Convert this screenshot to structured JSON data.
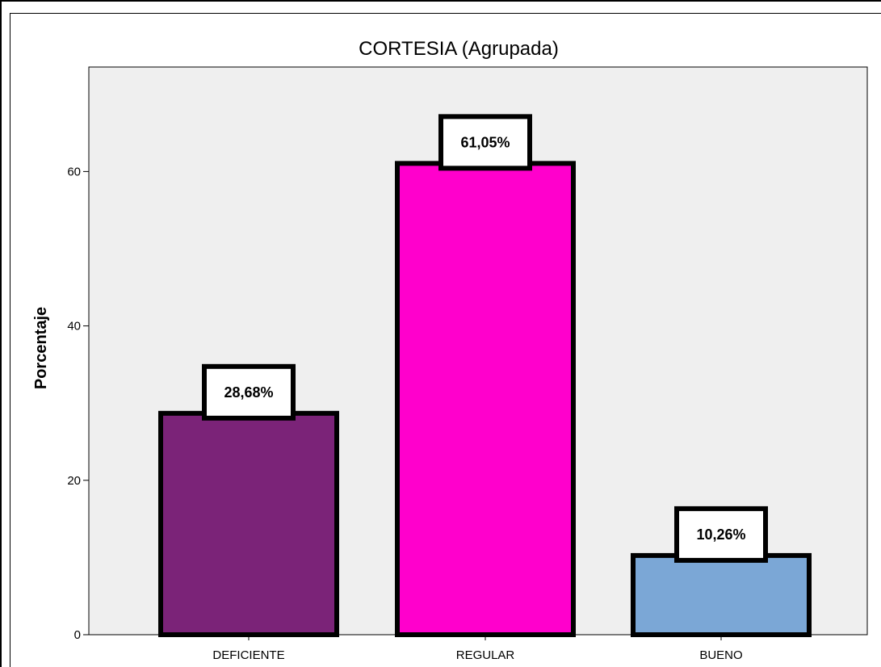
{
  "chart_data": {
    "type": "bar",
    "title": "CORTESIA (Agrupada)",
    "xlabel": "",
    "ylabel": "Porcentaje",
    "categories": [
      "DEFICIENTE",
      "REGULAR",
      "BUENO"
    ],
    "values": [
      28.68,
      61.05,
      10.26
    ],
    "data_labels": [
      "28,68%",
      "61,05%",
      "10,26%"
    ],
    "colors": [
      "#7B2378",
      "#FF00CC",
      "#7BA7D6"
    ],
    "ylim": [
      0,
      70
    ],
    "yticks": [
      0,
      20,
      40,
      60
    ],
    "plot_background": "#EFEFEF",
    "grid": false,
    "legend": "none"
  }
}
